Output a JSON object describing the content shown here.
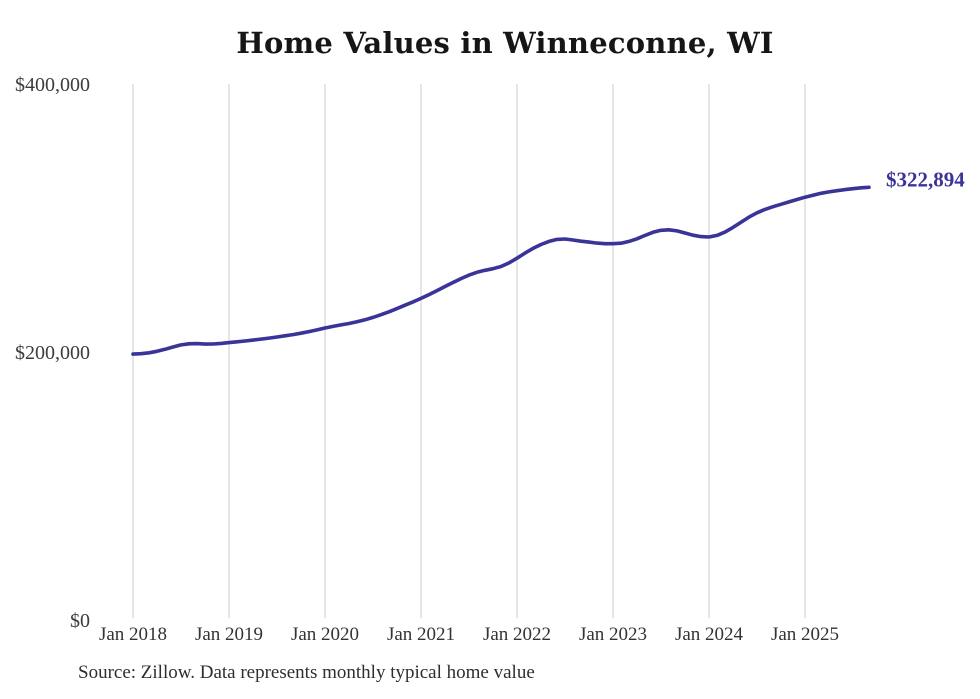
{
  "chart": {
    "title": "Home Values in Winneconne, WI",
    "source": "Source: Zillow. Data represents monthly typical home value"
  },
  "chart_data": {
    "type": "line",
    "title": "Home Values in Winneconne, WI",
    "series_name": "Monthly typical home value",
    "xlabel": "",
    "ylabel": "",
    "ylim": [
      0,
      400000
    ],
    "grid": "vertical-only",
    "legend_position": "none",
    "x_tick_labels": [
      "Jan 2018",
      "Jan 2019",
      "Jan 2020",
      "Jan 2021",
      "Jan 2022",
      "Jan 2023",
      "Jan 2024",
      "Jan 2025"
    ],
    "y_ticks": [
      {
        "label": "$0",
        "value": 0
      },
      {
        "label": "$200,000",
        "value": 200000
      },
      {
        "label": "$400,000",
        "value": 400000
      }
    ],
    "end_label": "$322,894",
    "final_value": 322894,
    "line_color": "#3a3499",
    "grid_color": "#cccccc",
    "months": [
      "2018-01",
      "2018-02",
      "2018-03",
      "2018-04",
      "2018-05",
      "2018-06",
      "2018-07",
      "2018-08",
      "2018-09",
      "2018-10",
      "2018-11",
      "2018-12",
      "2019-01",
      "2019-02",
      "2019-03",
      "2019-04",
      "2019-05",
      "2019-06",
      "2019-07",
      "2019-08",
      "2019-09",
      "2019-10",
      "2019-11",
      "2019-12",
      "2020-01",
      "2020-02",
      "2020-03",
      "2020-04",
      "2020-05",
      "2020-06",
      "2020-07",
      "2020-08",
      "2020-09",
      "2020-10",
      "2020-11",
      "2020-12",
      "2021-01",
      "2021-02",
      "2021-03",
      "2021-04",
      "2021-05",
      "2021-06",
      "2021-07",
      "2021-08",
      "2021-09",
      "2021-10",
      "2021-11",
      "2021-12",
      "2022-01",
      "2022-02",
      "2022-03",
      "2022-04",
      "2022-05",
      "2022-06",
      "2022-07",
      "2022-08",
      "2022-09",
      "2022-10",
      "2022-11",
      "2022-12",
      "2023-01",
      "2023-02",
      "2023-03",
      "2023-04",
      "2023-05",
      "2023-06",
      "2023-07",
      "2023-08",
      "2023-09",
      "2023-10",
      "2023-11",
      "2023-12",
      "2024-01",
      "2024-02",
      "2024-03",
      "2024-04",
      "2024-05",
      "2024-06",
      "2024-07",
      "2024-08",
      "2024-09",
      "2024-10",
      "2024-11",
      "2024-12",
      "2025-01",
      "2025-02",
      "2025-03",
      "2025-04",
      "2025-05",
      "2025-06",
      "2025-07",
      "2025-08",
      "2025-09"
    ],
    "values": [
      198400,
      198700,
      199400,
      200500,
      202000,
      203700,
      205300,
      206100,
      206300,
      205900,
      206000,
      206400,
      207000,
      207600,
      208200,
      208900,
      209600,
      210400,
      211200,
      212100,
      213000,
      214000,
      215200,
      216500,
      217900,
      219100,
      220200,
      221300,
      222500,
      224000,
      225800,
      227800,
      230000,
      232400,
      234900,
      237400,
      240000,
      242800,
      245800,
      248900,
      251900,
      254800,
      257400,
      259500,
      261000,
      262200,
      263800,
      266500,
      270000,
      273800,
      277300,
      280200,
      282500,
      284000,
      284300,
      283600,
      282700,
      282000,
      281300,
      280800,
      280800,
      281200,
      282500,
      284500,
      287000,
      289300,
      290800,
      291200,
      290400,
      288800,
      287200,
      286100,
      285800,
      287000,
      289500,
      293000,
      296900,
      300700,
      303900,
      306400,
      308400,
      310200,
      312000,
      313800,
      315500,
      317000,
      318400,
      319500,
      320400,
      321200,
      321900,
      322500,
      322894
    ]
  }
}
